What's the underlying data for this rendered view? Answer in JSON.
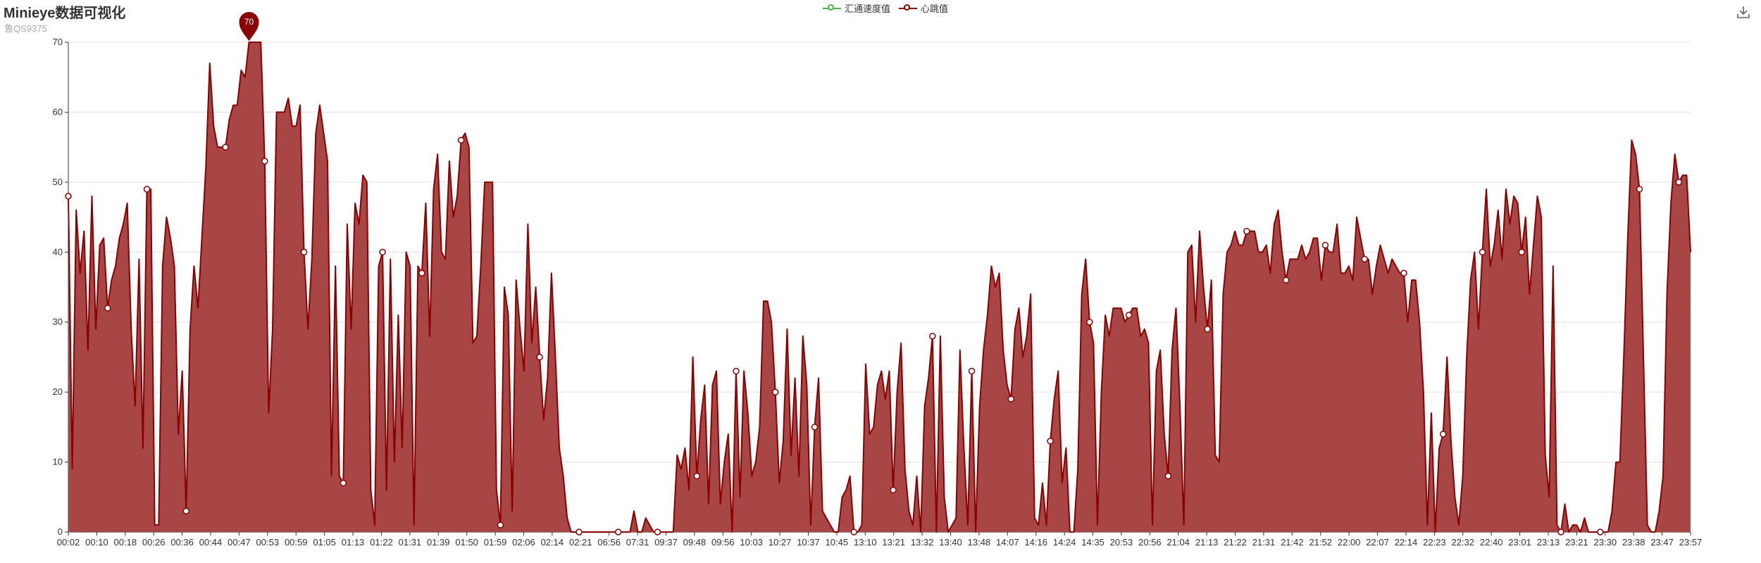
{
  "header": {
    "title": "Minieye数据可视化",
    "subtitle": "鲁QS9375"
  },
  "toolbox": {
    "download_icon": "download-icon"
  },
  "colors": {
    "speed": "#4caf50",
    "heartbeat": "#8b0000",
    "heartbeat_area": "#a84646",
    "grid": "#e0e0e0",
    "axis": "#333333"
  },
  "chart_data": {
    "type": "area",
    "title": "Minieye数据可视化",
    "subtitle": "鲁QS9375",
    "legend": {
      "position": "top-center",
      "items": [
        "汇通速度值",
        "心跳值"
      ]
    },
    "xlabel": "",
    "ylabel": "",
    "ylim": [
      0,
      70
    ],
    "yticks": [
      0,
      10,
      20,
      30,
      40,
      50,
      60,
      70
    ],
    "grid": true,
    "xtick_labels": [
      "00:02",
      "00:10",
      "00:18",
      "00:26",
      "00:36",
      "00:44",
      "00:47",
      "00:53",
      "00:59",
      "01:05",
      "01:13",
      "01:22",
      "01:31",
      "01:39",
      "01:50",
      "01:59",
      "02:06",
      "02:14",
      "02:21",
      "06:56",
      "07:31",
      "09:37",
      "09:48",
      "09:56",
      "10:03",
      "10:27",
      "10:37",
      "10:45",
      "13:10",
      "13:21",
      "13:32",
      "13:40",
      "13:48",
      "14:07",
      "14:16",
      "14:24",
      "14:35",
      "20:53",
      "20:56",
      "21:04",
      "21:13",
      "21:22",
      "21:31",
      "21:42",
      "21:52",
      "22:00",
      "22:07",
      "22:14",
      "22:23",
      "22:32",
      "22:40",
      "23:01",
      "23:13",
      "23:21",
      "23:30",
      "23:38",
      "23:47",
      "23:57"
    ],
    "max_marker": {
      "label": "70",
      "value": 70,
      "series": "心跳值"
    },
    "series": [
      {
        "name": "心跳值",
        "color": "#8b0000",
        "values": [
          48,
          9,
          46,
          37,
          43,
          26,
          48,
          29,
          41,
          42,
          32,
          36,
          38,
          42,
          44,
          47,
          29,
          18,
          39,
          12,
          49,
          49,
          1,
          1,
          38,
          45,
          42,
          38,
          14,
          23,
          3,
          29,
          38,
          32,
          42,
          52,
          67,
          58,
          55,
          55,
          55,
          59,
          61,
          61,
          66,
          65,
          70,
          70,
          70,
          70,
          53,
          17,
          29,
          60,
          60,
          60,
          62,
          58,
          58,
          61,
          40,
          29,
          39,
          57,
          61,
          57,
          53,
          8,
          38,
          8,
          7,
          44,
          29,
          47,
          44,
          51,
          50,
          6,
          1,
          38,
          40,
          6,
          39,
          10,
          31,
          12,
          40,
          38,
          1,
          38,
          37,
          47,
          28,
          49,
          54,
          40,
          39,
          53,
          45,
          48,
          56,
          57,
          55,
          27,
          28,
          38,
          50,
          50,
          50,
          6,
          1,
          35,
          31,
          3,
          36,
          29,
          23,
          44,
          27,
          35,
          25,
          16,
          22,
          37,
          25,
          12,
          8,
          2,
          0,
          0,
          0,
          0,
          0,
          0,
          0,
          0,
          0,
          0,
          0,
          0,
          0,
          0,
          0,
          0,
          3,
          0,
          0,
          2,
          1,
          0,
          0,
          0,
          0,
          0,
          0,
          11,
          9,
          12,
          6,
          25,
          8,
          16,
          21,
          4,
          21,
          23,
          4,
          10,
          14,
          0,
          23,
          5,
          23,
          17,
          8,
          10,
          15,
          33,
          33,
          30,
          20,
          7,
          13,
          29,
          11,
          22,
          8,
          28,
          21,
          1,
          15,
          22,
          3,
          2,
          1,
          0,
          0,
          5,
          6,
          8,
          0,
          0,
          1,
          24,
          14,
          15,
          21,
          23,
          19,
          23,
          6,
          20,
          27,
          9,
          3,
          1,
          8,
          0,
          18,
          22,
          28,
          0,
          28,
          5,
          0,
          1,
          2,
          26,
          12,
          1,
          23,
          0,
          18,
          26,
          31,
          38,
          35,
          37,
          26,
          21,
          19,
          29,
          32,
          25,
          28,
          34,
          2,
          1,
          7,
          1,
          13,
          19,
          23,
          7,
          12,
          0,
          0,
          9,
          34,
          39,
          30,
          27,
          1,
          20,
          31,
          28,
          32,
          32,
          32,
          30,
          31,
          32,
          32,
          28,
          29,
          27,
          1,
          23,
          26,
          14,
          8,
          26,
          32,
          18,
          1,
          40,
          41,
          30,
          43,
          35,
          29,
          36,
          11,
          10,
          34,
          40,
          41,
          43,
          41,
          41,
          43,
          43,
          43,
          40,
          40,
          41,
          37,
          44,
          46,
          40,
          36,
          39,
          39,
          39,
          41,
          39,
          40,
          42,
          42,
          36,
          41,
          40,
          40,
          44,
          37,
          37,
          38,
          36,
          45,
          42,
          39,
          39,
          34,
          38,
          41,
          39,
          37,
          39,
          38,
          37,
          37,
          30,
          36,
          36,
          30,
          20,
          1,
          17,
          0,
          12,
          14,
          25,
          13,
          5,
          1,
          8,
          25,
          36,
          40,
          29,
          40,
          49,
          38,
          41,
          46,
          39,
          49,
          44,
          48,
          47,
          40,
          45,
          34,
          41,
          48,
          45,
          11,
          5,
          38,
          1,
          0,
          4,
          0,
          1,
          1,
          0,
          2,
          0,
          0,
          0,
          0,
          0,
          0,
          3,
          10,
          10,
          25,
          42,
          56,
          54,
          49,
          25,
          1,
          0,
          0,
          3,
          8,
          34,
          47,
          54,
          50,
          51,
          51,
          40
        ]
      },
      {
        "name": "汇通速度值",
        "color": "#4caf50",
        "values": []
      }
    ]
  }
}
